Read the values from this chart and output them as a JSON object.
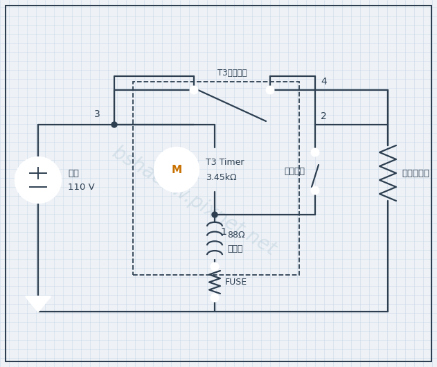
{
  "bg_color": "#eef2f7",
  "grid_color": "#ccd9e8",
  "line_color": "#2c3e50",
  "watermark_color": "#b8ccd8",
  "source_label": [
    "電源",
    "110 V"
  ],
  "motor_label": [
    "T3 Timer",
    "3.45kΩ"
  ],
  "heater_label": [
    "88Ω",
    "電熱絲"
  ],
  "fuse_label": "FUSE",
  "compressor_label": "壓縮機負載",
  "switch_label": "T3切換開順",
  "temp_switch_label": "溫度開順",
  "watermark_text": "bshadow.pixnet.net",
  "lw": 1.6
}
